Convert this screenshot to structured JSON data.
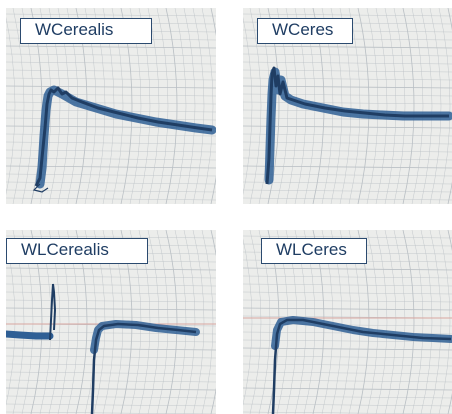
{
  "panels": [
    {
      "label": "WCerealis"
    },
    {
      "label": "WCeres"
    },
    {
      "label": "WLCerealis"
    },
    {
      "label": "WLCeres"
    }
  ],
  "colors": {
    "paper": "#ecedeb",
    "grid": "#b9bfc4",
    "trace": "#2f5f95",
    "trace_dark": "#1f3d63",
    "ref_line": "#d9a6a0"
  }
}
